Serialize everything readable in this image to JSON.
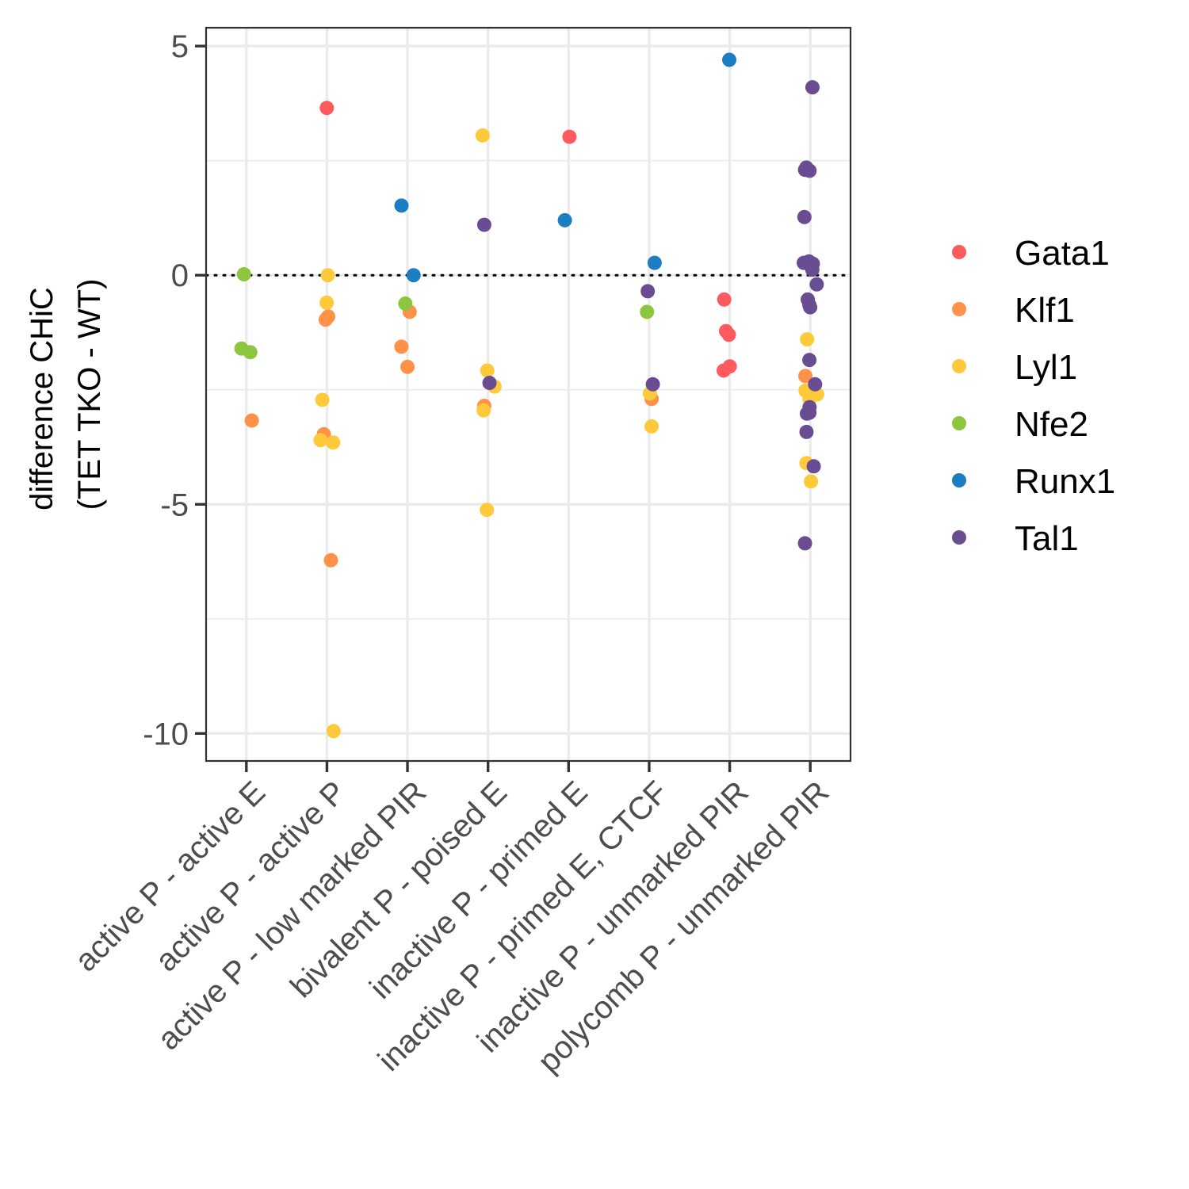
{
  "chart_data": {
    "type": "scatter",
    "title": "",
    "xlabel": "",
    "ylabel_lines": [
      "difference CHiC",
      "(TET TKO - WT)"
    ],
    "categories": [
      "active P - active E",
      "active P - active P",
      "active P - low marked PIR",
      "bivalent P - poised E",
      "inactive P - primed E",
      "inactive P - primed E, CTCF",
      "inactive P - unmarked PIR",
      "polycomb P - unmarked PIR"
    ],
    "ylim": [
      -10.6,
      5.4
    ],
    "yticks": [
      5,
      0,
      -5,
      -10
    ],
    "ytick_labels": [
      "5",
      "0",
      "-5",
      "-10"
    ],
    "reference_line": {
      "y": 0,
      "style": "dotted"
    },
    "grid": true,
    "legend_position": "right",
    "series": [
      {
        "name": "Gata1",
        "color": "#FF5A5F",
        "points": [
          {
            "category": "active P - active P",
            "y": 3.65
          },
          {
            "category": "inactive P - primed E",
            "y": 3.02
          },
          {
            "category": "inactive P - unmarked PIR",
            "y": -0.53
          },
          {
            "category": "inactive P - unmarked PIR",
            "y": -1.22
          },
          {
            "category": "inactive P - unmarked PIR",
            "y": -1.3
          },
          {
            "category": "inactive P - unmarked PIR",
            "y": -1.99
          },
          {
            "category": "inactive P - unmarked PIR",
            "y": -2.08
          }
        ]
      },
      {
        "name": "Klf1",
        "color": "#FF9248",
        "points": [
          {
            "category": "active P - active E",
            "y": -3.17
          },
          {
            "category": "active P - active P",
            "y": -0.9
          },
          {
            "category": "active P - active P",
            "y": -0.97
          },
          {
            "category": "active P - active P",
            "y": -3.47
          },
          {
            "category": "active P - active P",
            "y": -6.22
          },
          {
            "category": "active P - low marked PIR",
            "y": -0.8
          },
          {
            "category": "active P - low marked PIR",
            "y": -1.56
          },
          {
            "category": "active P - low marked PIR",
            "y": -2.0
          },
          {
            "category": "bivalent P - poised E",
            "y": -2.85
          },
          {
            "category": "inactive P - primed E, CTCF",
            "y": -2.7
          },
          {
            "category": "polycomb P - unmarked PIR",
            "y": -2.2
          }
        ]
      },
      {
        "name": "Lyl1",
        "color": "#FFC93C",
        "points": [
          {
            "category": "active P - active P",
            "y": 0.0
          },
          {
            "category": "active P - active P",
            "y": -0.6
          },
          {
            "category": "active P - active P",
            "y": -2.72
          },
          {
            "category": "active P - active P",
            "y": -3.6
          },
          {
            "category": "active P - active P",
            "y": -3.65
          },
          {
            "category": "active P - active P",
            "y": -9.95
          },
          {
            "category": "bivalent P - poised E",
            "y": 3.05
          },
          {
            "category": "bivalent P - poised E",
            "y": -2.08
          },
          {
            "category": "bivalent P - poised E",
            "y": -2.43
          },
          {
            "category": "bivalent P - poised E",
            "y": -2.95
          },
          {
            "category": "bivalent P - poised E",
            "y": -5.12
          },
          {
            "category": "inactive P - primed E, CTCF",
            "y": -2.58
          },
          {
            "category": "inactive P - primed E, CTCF",
            "y": -3.3
          },
          {
            "category": "polycomb P - unmarked PIR",
            "y": -1.4
          },
          {
            "category": "polycomb P - unmarked PIR",
            "y": -2.52
          },
          {
            "category": "polycomb P - unmarked PIR",
            "y": -2.6
          },
          {
            "category": "polycomb P - unmarked PIR",
            "y": -2.7
          },
          {
            "category": "polycomb P - unmarked PIR",
            "y": -4.1
          },
          {
            "category": "polycomb P - unmarked PIR",
            "y": -4.5
          }
        ]
      },
      {
        "name": "Nfe2",
        "color": "#8CC63F",
        "points": [
          {
            "category": "active P - active E",
            "y": 0.02
          },
          {
            "category": "active P - active E",
            "y": -1.6
          },
          {
            "category": "active P - active E",
            "y": -1.68
          },
          {
            "category": "active P - low marked PIR",
            "y": -0.62
          },
          {
            "category": "inactive P - primed E, CTCF",
            "y": -0.8
          }
        ]
      },
      {
        "name": "Runx1",
        "color": "#1B7EC2",
        "points": [
          {
            "category": "active P - low marked PIR",
            "y": 1.52
          },
          {
            "category": "active P - low marked PIR",
            "y": 0.0
          },
          {
            "category": "inactive P - primed E",
            "y": 1.2
          },
          {
            "category": "inactive P - primed E, CTCF",
            "y": 0.27
          },
          {
            "category": "inactive P - unmarked PIR",
            "y": 4.7
          }
        ]
      },
      {
        "name": "Tal1",
        "color": "#6A4C93",
        "points": [
          {
            "category": "bivalent P - poised E",
            "y": 1.1
          },
          {
            "category": "bivalent P - poised E",
            "y": -2.35
          },
          {
            "category": "inactive P - primed E, CTCF",
            "y": -0.35
          },
          {
            "category": "inactive P - primed E, CTCF",
            "y": -2.38
          },
          {
            "category": "polycomb P - unmarked PIR",
            "y": 4.1
          },
          {
            "category": "polycomb P - unmarked PIR",
            "y": 2.3
          },
          {
            "category": "polycomb P - unmarked PIR",
            "y": 2.35
          },
          {
            "category": "polycomb P - unmarked PIR",
            "y": 2.28
          },
          {
            "category": "polycomb P - unmarked PIR",
            "y": 1.27
          },
          {
            "category": "polycomb P - unmarked PIR",
            "y": 0.27
          },
          {
            "category": "polycomb P - unmarked PIR",
            "y": 0.3
          },
          {
            "category": "polycomb P - unmarked PIR",
            "y": 0.25
          },
          {
            "category": "polycomb P - unmarked PIR",
            "y": 0.12
          },
          {
            "category": "polycomb P - unmarked PIR",
            "y": -0.2
          },
          {
            "category": "polycomb P - unmarked PIR",
            "y": -0.53
          },
          {
            "category": "polycomb P - unmarked PIR",
            "y": -0.65
          },
          {
            "category": "polycomb P - unmarked PIR",
            "y": -0.7
          },
          {
            "category": "polycomb P - unmarked PIR",
            "y": -1.85
          },
          {
            "category": "polycomb P - unmarked PIR",
            "y": -2.38
          },
          {
            "category": "polycomb P - unmarked PIR",
            "y": -2.88
          },
          {
            "category": "polycomb P - unmarked PIR",
            "y": -3.0
          },
          {
            "category": "polycomb P - unmarked PIR",
            "y": -3.02
          },
          {
            "category": "polycomb P - unmarked PIR",
            "y": -3.42
          },
          {
            "category": "polycomb P - unmarked PIR",
            "y": -4.17
          },
          {
            "category": "polycomb P - unmarked PIR",
            "y": -5.85
          }
        ]
      }
    ]
  }
}
